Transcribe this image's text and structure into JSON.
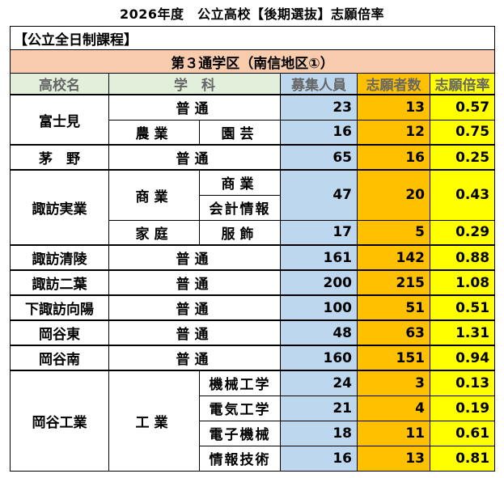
{
  "title": "2026年度　公立高校【後期選抜】志願倍率",
  "section": "【公立全日制課程】",
  "district": "第３通学区（南信地区①）",
  "headers": {
    "school": "高校名",
    "dept": "学　科",
    "capacity": "募集人員",
    "applicants": "志願者数",
    "ratio": "志願倍率"
  },
  "schools": {
    "fujimi": "富士見",
    "chino": "茅　野",
    "suwa_jitsugyo": "諏訪実業",
    "suwa_seiryo": "諏訪清陵",
    "suwa_futaba": "諏訪二葉",
    "shimosuwa_koyo": "下諏訪向陽",
    "okaya_higashi": "岡谷東",
    "okaya_minami": "岡谷南",
    "okaya_kogyo": "岡谷工業"
  },
  "rows": {
    "fujimi_futsu": {
      "dept": "普通",
      "capacity": "23",
      "applicants": "13",
      "ratio": "0.57"
    },
    "fujimi_noen": {
      "dept": "農業",
      "course": "園芸",
      "capacity": "16",
      "applicants": "12",
      "ratio": "0.75"
    },
    "chino_futsu": {
      "dept": "普通",
      "capacity": "65",
      "applicants": "16",
      "ratio": "0.25"
    },
    "sj_shogyo": {
      "dept": "商業",
      "course1": "商業",
      "course2": "会計情報",
      "capacity": "47",
      "applicants": "20",
      "ratio": "0.43"
    },
    "sj_katei": {
      "dept": "家庭",
      "course": "服飾",
      "capacity": "17",
      "applicants": "5",
      "ratio": "0.29"
    },
    "seiryo_futsu": {
      "dept": "普通",
      "capacity": "161",
      "applicants": "142",
      "ratio": "0.88"
    },
    "futaba_futsu": {
      "dept": "普通",
      "capacity": "200",
      "applicants": "215",
      "ratio": "1.08"
    },
    "koyo_futsu": {
      "dept": "普通",
      "capacity": "100",
      "applicants": "51",
      "ratio": "0.51"
    },
    "higashi_futsu": {
      "dept": "普通",
      "capacity": "48",
      "applicants": "63",
      "ratio": "1.31"
    },
    "minami_futsu": {
      "dept": "普通",
      "capacity": "160",
      "applicants": "151",
      "ratio": "0.94"
    },
    "kogyo_dept": "工業",
    "kogyo_kikai": {
      "course": "機械工学",
      "capacity": "24",
      "applicants": "3",
      "ratio": "0.13"
    },
    "kogyo_denki": {
      "course": "電気工学",
      "capacity": "21",
      "applicants": "4",
      "ratio": "0.19"
    },
    "kogyo_denshi": {
      "course": "電子機械",
      "capacity": "18",
      "applicants": "11",
      "ratio": "0.61"
    },
    "kogyo_joho": {
      "course": "情報技術",
      "capacity": "16",
      "applicants": "13",
      "ratio": "0.81"
    }
  },
  "colors": {
    "district_bg": "#f8cbad",
    "header_bg": "#e2efda",
    "capacity_bg": "#bdd7ee",
    "applicants_bg": "#ffc000",
    "ratio_bg": "#ffff00"
  }
}
